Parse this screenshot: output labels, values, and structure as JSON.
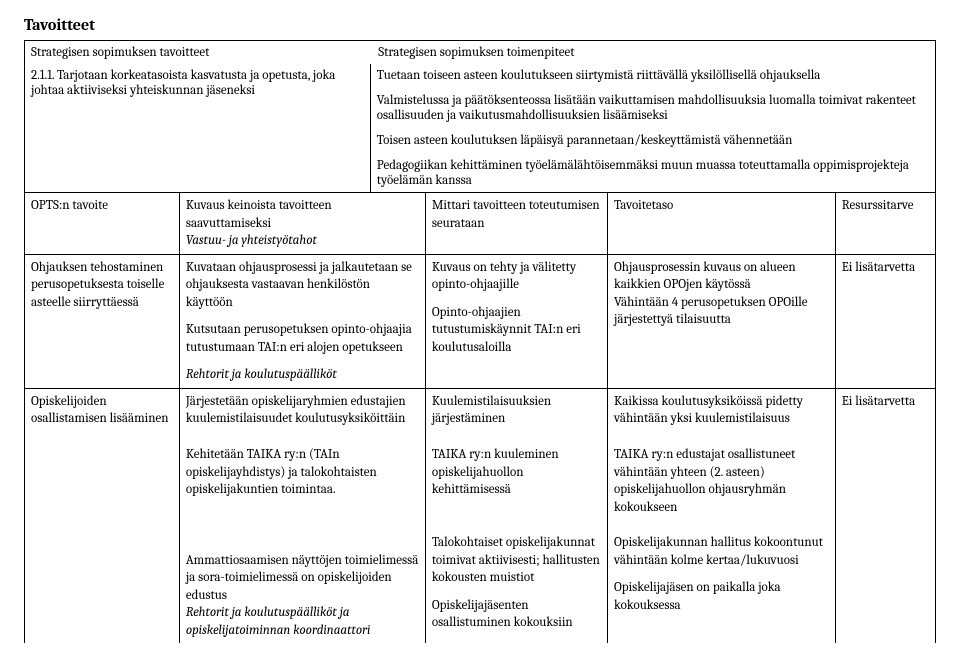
{
  "title": "Tavoitteet",
  "top": {
    "left_label": "Strategisen sopimuksen tavoitteet",
    "right_label": "Strategisen sopimuksen toimenpiteet",
    "item_number": "2.1.1. Tarjotaan korkeatasoista kasvatusta ja opetusta, joka johtaa aktiiviseksi yhteiskunnan jäseneksi",
    "right_p1": "Tuetaan toiseen asteen koulutukseen siirtymistä riittävällä yksilöllisellä ohjauksella",
    "right_p2": "Valmistelussa ja päätöksenteossa lisätään vaikuttamisen mahdollisuuksia luomalla toimivat rakenteet osallisuuden ja vaikutusmahdollisuuksien lisäämiseksi",
    "right_p3": "Toisen asteen koulutuksen läpäisyä parannetaan/keskeyttämistä vähennetään",
    "right_p4": "Pedagogiikan kehittäminen työelämälähtöisemmäksi muun muassa toteuttamalla oppimisprojekteja työelämän kanssa"
  },
  "headers": {
    "c1": "OPTS:n tavoite",
    "c2": "Kuvaus keinoista tavoitteen saavuttamiseksi",
    "c2_sub": "Vastuu- ja yhteistyötahot",
    "c3": "Mittari tavoitteen toteutumisen seurataan",
    "c4": "Tavoitetaso",
    "c5": "Resurssitarve"
  },
  "rows": [
    {
      "c1": "Ohjauksen tehostaminen perusopetuksesta toiselle asteelle siirryttäessä",
      "c2a": "Kuvataan ohjausprosessi ja jalkautetaan se ohjauksesta vastaavan henkilöstön käyttöön",
      "c2b": "Kutsutaan perusopetuksen opinto-ohjaajia tutustumaan TAI:n eri alojen opetukseen",
      "c2c": "Rehtorit ja koulutuspäälliköt",
      "c3a": "Kuvaus on tehty ja välitetty opinto-ohjaajille",
      "c3b": "Opinto-ohjaajien tutustumiskäynnit TAI:n eri koulutusaloilla",
      "c4a": "Ohjausprosessin kuvaus on alueen kaikkien OPOjen käytössä",
      "c4b": "Vähintään 4 perusopetuksen OPOille järjestettyä tilaisuutta",
      "c5": "Ei lisätarvetta"
    },
    {
      "c1": "Opiskelijoiden osallistamisen lisääminen",
      "c2a": "Järjestetään opiskelijaryhmien edustajien kuulemistilaisuudet koulutusyksiköittäin",
      "c3a": "Kuulemistilaisuuksien järjestäminen",
      "c4a": "Kaikissa koulutusyksiköissä pidetty vähintään yksi kuulemistilaisuus",
      "c5": "Ei lisätarvetta"
    }
  ],
  "cont": {
    "b2a": "Kehitetään TAIKA ry:n (TAIn opiskelijayhdistys) ja talokohtaisten opiskelijakuntien toimintaa.",
    "b3a": "TAIKA ry:n kuuleminen opiskelijahuollon kehittämisessä",
    "b4a": "TAIKA ry:n edustajat osallistuneet vähintään yhteen (2. asteen) opiskelijahuollon ohjausryhmän kokoukseen",
    "b2b": "Ammattiosaamisen näyttöjen toimielimessä ja sora-toimielimessä on opiskelijoiden edustus",
    "b2c": "Rehtorit ja koulutuspäälliköt ja opiskelijatoiminnan koordinaattori",
    "b3b": "Talokohtaiset opiskelijakunnat toimivat aktiivisesti; hallitusten kokousten muistiot",
    "b3c": "Opiskelijajäsenten osallistuminen kokouksiin",
    "b4b": "Opiskelijakunnan hallitus kokoontunut vähintään kolme kertaa/lukuvuosi",
    "b4c": "Opiskelijajäsen on paikalla joka kokouksessa"
  }
}
